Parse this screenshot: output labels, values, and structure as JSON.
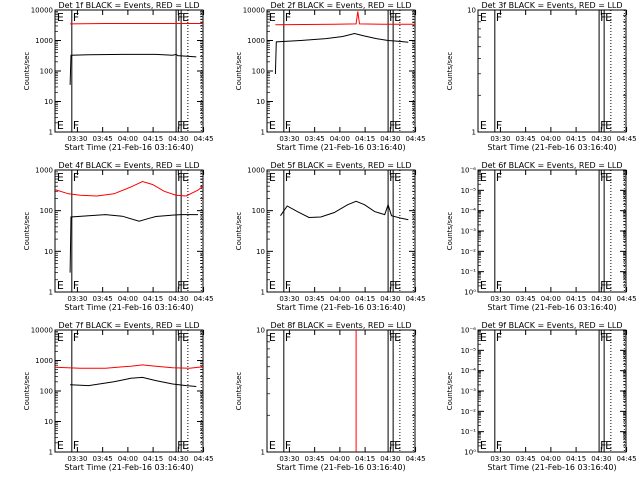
{
  "chart_data": [
    {
      "type": "line",
      "title": "Det 1f BLACK = Events, RED = LLD",
      "xlabel": "Start Time (21-Feb-16 03:16:40)",
      "ylabel": "Counts/sec",
      "x_ticks": [
        "03:30",
        "03:45",
        "04:00",
        "04:15",
        "04:30",
        "04:45"
      ],
      "y_ticks": [
        "1",
        "10",
        "100",
        "1000",
        "10000"
      ],
      "ylim": [
        1,
        10000
      ],
      "xlim_min_after_start": [
        0,
        88
      ],
      "yscale": "log",
      "flags": [
        {
          "label": "E",
          "t": 0.5
        },
        {
          "label": "F",
          "t": 10
        },
        {
          "label": "F",
          "t": 72
        },
        {
          "label": "E",
          "t": 75
        }
      ],
      "vertical_lines": {
        "solid": [
          10,
          72,
          75
        ],
        "dotted": [
          79,
          87
        ]
      },
      "series": [
        {
          "color": "#ff0000",
          "points": [
            [
              9,
              3500
            ],
            [
              30,
              3600
            ],
            [
              55,
              3600
            ],
            [
              70,
              3600
            ],
            [
              88,
              3600
            ]
          ]
        },
        {
          "color": "#000000",
          "points": [
            [
              9,
              35
            ],
            [
              9.5,
              330
            ],
            [
              20,
              340
            ],
            [
              40,
              350
            ],
            [
              60,
              350
            ],
            [
              70,
              330
            ],
            [
              72,
              350
            ],
            [
              73,
              320
            ],
            [
              84,
              290
            ]
          ]
        }
      ]
    },
    {
      "type": "line",
      "title": "Det 2f BLACK = Events, RED = LLD",
      "xlabel": "Start Time (21-Feb-16 03:16:40)",
      "ylabel": "Counts/sec",
      "x_ticks": [
        "03:30",
        "03:45",
        "04:00",
        "04:15",
        "04:30",
        "04:45"
      ],
      "y_ticks": [
        "1",
        "10",
        "100",
        "1000",
        "10000"
      ],
      "ylim": [
        1,
        10000
      ],
      "xlim_min_after_start": [
        0,
        88
      ],
      "yscale": "log",
      "flags": [
        {
          "label": "E",
          "t": 0.5
        },
        {
          "label": "F",
          "t": 10
        },
        {
          "label": "F",
          "t": 72
        },
        {
          "label": "E",
          "t": 75
        }
      ],
      "vertical_lines": {
        "solid": [
          10,
          72,
          75
        ],
        "dotted": [
          79,
          87
        ]
      },
      "series": [
        {
          "color": "#ff0000",
          "points": [
            [
              5,
              3300
            ],
            [
              40,
              3400
            ],
            [
              53,
              3500
            ],
            [
              54,
              9000
            ],
            [
              55,
              3500
            ],
            [
              70,
              3400
            ],
            [
              88,
              3400
            ]
          ]
        },
        {
          "color": "#000000",
          "points": [
            [
              5,
              80
            ],
            [
              5.5,
              900
            ],
            [
              20,
              1000
            ],
            [
              35,
              1150
            ],
            [
              45,
              1350
            ],
            [
              52,
              1700
            ],
            [
              58,
              1400
            ],
            [
              65,
              1150
            ],
            [
              72,
              1000
            ],
            [
              78,
              950
            ],
            [
              84,
              880
            ]
          ]
        }
      ]
    },
    {
      "type": "line",
      "title": "Det 3f BLACK = Events, RED = LLD",
      "xlabel": "Start Time (21-Feb-16 03:16:40)",
      "ylabel": "Counts/sec",
      "x_ticks": [
        "03:30",
        "03:45",
        "04:00",
        "04:15",
        "04:30",
        "04:45"
      ],
      "y_ticks": [
        "1",
        "10"
      ],
      "ylim": [
        1,
        10
      ],
      "xlim_min_after_start": [
        0,
        88
      ],
      "yscale": "log",
      "flags": [
        {
          "label": "E",
          "t": 0.5
        },
        {
          "label": "F",
          "t": 10
        },
        {
          "label": "F",
          "t": 72
        },
        {
          "label": "E",
          "t": 75
        }
      ],
      "vertical_lines": {
        "solid": [
          10,
          72,
          75
        ],
        "dotted": [
          79,
          87
        ]
      },
      "series": []
    },
    {
      "type": "line",
      "title": "Det 4f BLACK = Events, RED = LLD",
      "xlabel": "Start Time (21-Feb-16 03:16:40)",
      "ylabel": "Counts/sec",
      "x_ticks": [
        "03:30",
        "03:45",
        "04:00",
        "04:15",
        "04:30",
        "04:45"
      ],
      "y_ticks": [
        "1",
        "10",
        "100",
        "1000"
      ],
      "ylim": [
        1,
        1000
      ],
      "xlim_min_after_start": [
        0,
        88
      ],
      "yscale": "log",
      "flags": [
        {
          "label": "E",
          "t": 0.5
        },
        {
          "label": "F",
          "t": 10
        },
        {
          "label": "F",
          "t": 72
        },
        {
          "label": "E",
          "t": 75
        }
      ],
      "vertical_lines": {
        "solid": [
          10,
          72,
          75
        ],
        "dotted": [
          79,
          87
        ]
      },
      "series": [
        {
          "color": "#ff0000",
          "points": [
            [
              0,
              330
            ],
            [
              8,
              260
            ],
            [
              15,
              240
            ],
            [
              25,
              230
            ],
            [
              35,
              260
            ],
            [
              45,
              380
            ],
            [
              52,
              520
            ],
            [
              58,
              440
            ],
            [
              65,
              300
            ],
            [
              72,
              240
            ],
            [
              78,
              230
            ],
            [
              85,
              320
            ],
            [
              88,
              400
            ]
          ]
        },
        {
          "color": "#000000",
          "points": [
            [
              9,
              3
            ],
            [
              9.5,
              70
            ],
            [
              20,
              75
            ],
            [
              30,
              80
            ],
            [
              40,
              73
            ],
            [
              50,
              55
            ],
            [
              56,
              65
            ],
            [
              60,
              72
            ],
            [
              70,
              78
            ],
            [
              75,
              80
            ],
            [
              85,
              80
            ]
          ]
        }
      ]
    },
    {
      "type": "line",
      "title": "Det 5f BLACK = Events, RED = LLD",
      "xlabel": "Start Time (21-Feb-16 03:16:40)",
      "ylabel": "Counts/sec",
      "x_ticks": [
        "03:30",
        "03:45",
        "04:00",
        "04:15",
        "04:30",
        "04:45"
      ],
      "y_ticks": [
        "1",
        "10",
        "100",
        "1000"
      ],
      "ylim": [
        1,
        1000
      ],
      "xlim_min_after_start": [
        0,
        88
      ],
      "yscale": "log",
      "flags": [
        {
          "label": "E",
          "t": 0.5
        },
        {
          "label": "F",
          "t": 10
        },
        {
          "label": "F",
          "t": 72
        },
        {
          "label": "E",
          "t": 75
        }
      ],
      "vertical_lines": {
        "solid": [
          10,
          72,
          75
        ],
        "dotted": [
          79,
          87
        ]
      },
      "series": [
        {
          "color": "#000000",
          "points": [
            [
              8,
              75
            ],
            [
              12,
              130
            ],
            [
              18,
              95
            ],
            [
              25,
              68
            ],
            [
              32,
              70
            ],
            [
              40,
              90
            ],
            [
              48,
              140
            ],
            [
              53,
              170
            ],
            [
              58,
              140
            ],
            [
              64,
              95
            ],
            [
              70,
              80
            ],
            [
              72,
              140
            ],
            [
              74,
              75
            ],
            [
              80,
              65
            ],
            [
              84,
              60
            ]
          ]
        }
      ]
    },
    {
      "type": "line",
      "title": "Det 6f BLACK = Events, RED = LLD",
      "xlabel": "Start Time (21-Feb-16 03:16:40)",
      "ylabel": "Counts/sec",
      "x_ticks": [
        "03:30",
        "03:45",
        "04:00",
        "04:15",
        "04:30",
        "04:45"
      ],
      "y_ticks": [
        "10⁰",
        "10⁻¹",
        "10⁻²",
        "10⁻³",
        "10⁻⁴",
        "10⁻⁵",
        "10⁻⁶"
      ],
      "ylim": [
        1e-06,
        1
      ],
      "xlim_min_after_start": [
        0,
        88
      ],
      "yscale": "log",
      "flags": [
        {
          "label": "E",
          "t": 0.5
        },
        {
          "label": "F",
          "t": 10
        },
        {
          "label": "F",
          "t": 72
        },
        {
          "label": "E",
          "t": 75
        }
      ],
      "vertical_lines": {
        "solid": [
          10,
          72,
          75
        ],
        "dotted": [
          79,
          87
        ]
      },
      "series": []
    },
    {
      "type": "line",
      "title": "Det 7f BLACK = Events, RED = LLD",
      "xlabel": "Start Time (21-Feb-16 03:16:40)",
      "ylabel": "Counts/sec",
      "x_ticks": [
        "03:30",
        "03:45",
        "04:00",
        "04:15",
        "04:30",
        "04:45"
      ],
      "y_ticks": [
        "1",
        "10",
        "100",
        "1000",
        "10000"
      ],
      "ylim": [
        1,
        10000
      ],
      "xlim_min_after_start": [
        0,
        88
      ],
      "yscale": "log",
      "flags": [
        {
          "label": "E",
          "t": 0.5
        },
        {
          "label": "F",
          "t": 10
        },
        {
          "label": "F",
          "t": 72
        },
        {
          "label": "E",
          "t": 75
        }
      ],
      "vertical_lines": {
        "solid": [
          10,
          72,
          75
        ],
        "dotted": [
          79,
          87
        ]
      },
      "series": [
        {
          "color": "#ff0000",
          "points": [
            [
              0,
              600
            ],
            [
              15,
              560
            ],
            [
              30,
              560
            ],
            [
              45,
              650
            ],
            [
              52,
              720
            ],
            [
              60,
              650
            ],
            [
              70,
              580
            ],
            [
              80,
              560
            ],
            [
              88,
              620
            ]
          ]
        },
        {
          "color": "#000000",
          "points": [
            [
              9,
              160
            ],
            [
              20,
              150
            ],
            [
              35,
              200
            ],
            [
              45,
              260
            ],
            [
              52,
              280
            ],
            [
              60,
              220
            ],
            [
              70,
              170
            ],
            [
              78,
              150
            ],
            [
              84,
              140
            ]
          ]
        }
      ]
    },
    {
      "type": "line",
      "title": "Det 8f BLACK = Events, RED = LLD",
      "xlabel": "Start Time (21-Feb-16 03:16:40)",
      "ylabel": "Counts/sec",
      "x_ticks": [
        "03:30",
        "03:45",
        "04:00",
        "04:15",
        "04:30",
        "04:45"
      ],
      "y_ticks": [
        "1",
        "10"
      ],
      "ylim": [
        1,
        10
      ],
      "xlim_min_after_start": [
        0,
        88
      ],
      "yscale": "log",
      "flags": [
        {
          "label": "E",
          "t": 0.5
        },
        {
          "label": "F",
          "t": 10
        },
        {
          "label": "F",
          "t": 72
        },
        {
          "label": "E",
          "t": 75
        }
      ],
      "vertical_lines": {
        "solid": [
          10,
          72,
          75
        ],
        "dotted": [
          79,
          87
        ]
      },
      "series": [
        {
          "color": "#ff0000",
          "points": [
            [
              53,
              1
            ],
            [
              53,
              10
            ]
          ]
        }
      ]
    },
    {
      "type": "line",
      "title": "Det 9f BLACK = Events, RED = LLD",
      "xlabel": "Start Time (21-Feb-16 03:16:40)",
      "ylabel": "Counts/sec",
      "x_ticks": [
        "03:30",
        "03:45",
        "04:00",
        "04:15",
        "04:30",
        "04:45"
      ],
      "y_ticks": [
        "10⁰",
        "10⁻¹",
        "10⁻²",
        "10⁻³",
        "10⁻⁴",
        "10⁻⁵",
        "10⁻⁶"
      ],
      "ylim": [
        1e-06,
        1
      ],
      "xlim_min_after_start": [
        0,
        88
      ],
      "yscale": "log",
      "flags": [
        {
          "label": "E",
          "t": 0.5
        },
        {
          "label": "F",
          "t": 10
        },
        {
          "label": "F",
          "t": 72
        },
        {
          "label": "E",
          "t": 75
        }
      ],
      "vertical_lines": {
        "solid": [
          10,
          72,
          75
        ],
        "dotted": [
          79,
          87
        ]
      },
      "series": []
    }
  ]
}
